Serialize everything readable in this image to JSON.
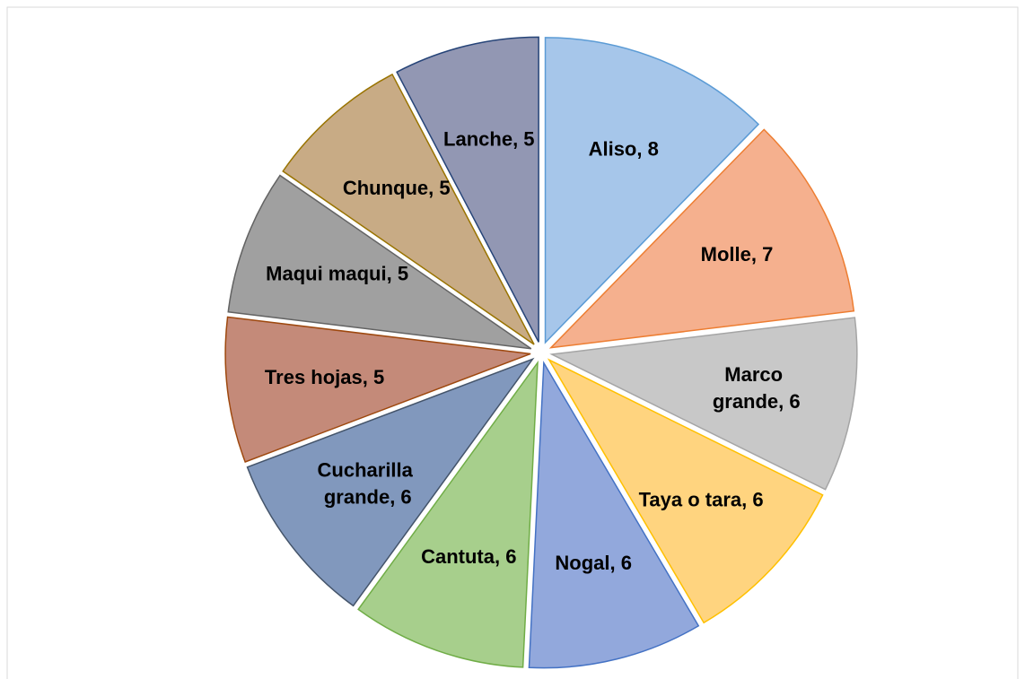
{
  "chart_data": {
    "type": "pie",
    "categories": [
      "Aliso",
      "Molle",
      "Marco grande",
      "Taya o tara",
      "Nogal",
      "Cantuta",
      "Cucharilla grande",
      "Tres hojas",
      "Maqui maqui",
      "Chunque",
      "Lanche"
    ],
    "values": [
      8,
      7,
      6,
      6,
      6,
      6,
      6,
      5,
      5,
      5,
      5
    ],
    "value_labels": [
      "Aliso, 8",
      "Molle, 7",
      "Marco grande, 6",
      "Taya o tara, 6",
      "Nogal, 6",
      "Cantuta, 6",
      "Cucharilla grande, 6",
      "Tres hojas, 5",
      "Maqui maqui, 5",
      "Chunque, 5",
      "Lanche, 5"
    ],
    "colors": [
      "#a6c6ea",
      "#f5b08e",
      "#c8c8c8",
      "#ffd47f",
      "#92a8dc",
      "#a7cf8c",
      "#8198bd",
      "#c48a79",
      "#a0a0a0",
      "#c8ab85",
      "#9297b3"
    ],
    "edge_colors": [
      "#5b9bd5",
      "#ed7d31",
      "#a5a5a5",
      "#ffc000",
      "#4472c4",
      "#70ad47",
      "#44546a",
      "#9e480e",
      "#636363",
      "#997300",
      "#264478"
    ]
  }
}
